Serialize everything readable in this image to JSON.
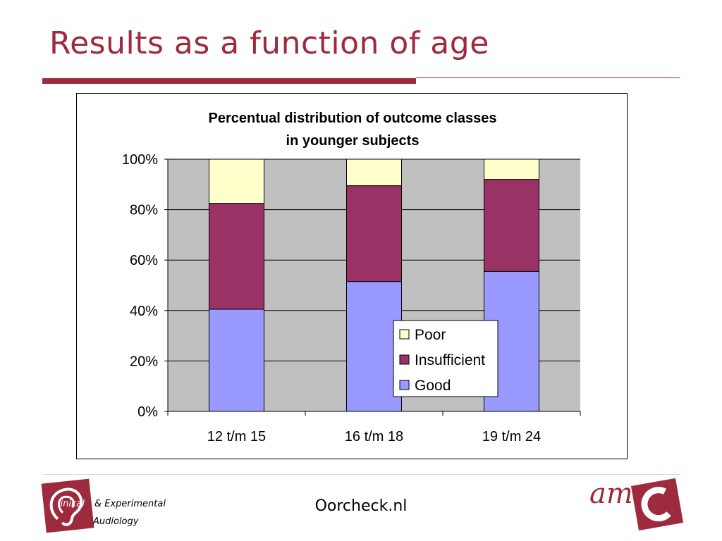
{
  "slide": {
    "title": "Results as a function of age",
    "footer": "Oorcheck.nl"
  },
  "logos": {
    "left_line1_part1": "linical",
    "left_line1_part2": "& Experimental",
    "left_line2": "Audiology",
    "right": "am"
  },
  "colors": {
    "accent": "#9e2a3e",
    "plot_bg": "#c0c0c0",
    "good": "#9999ff",
    "insufficient": "#993366",
    "poor": "#ffffcc"
  },
  "chart_data": {
    "type": "bar",
    "stacked": true,
    "title": [
      "Percentual distribution of outcome classes",
      "in younger subjects"
    ],
    "categories": [
      "12 t/m 15",
      "16 t/m 18",
      "19 t/m 24"
    ],
    "series": [
      {
        "name": "Good",
        "values": [
          40.5,
          51.5,
          55.5
        ],
        "color": "#9999ff"
      },
      {
        "name": "Insufficient",
        "values": [
          42.0,
          38.0,
          36.5
        ],
        "color": "#993366"
      },
      {
        "name": "Poor",
        "values": [
          17.5,
          10.5,
          8.0
        ],
        "color": "#ffffcc"
      }
    ],
    "yticks": [
      "0%",
      "20%",
      "40%",
      "60%",
      "80%",
      "100%"
    ],
    "ylim": [
      0,
      100
    ],
    "grid": true,
    "legend": {
      "position": "right-inside",
      "order": [
        "Poor",
        "Insufficient",
        "Good"
      ]
    }
  }
}
